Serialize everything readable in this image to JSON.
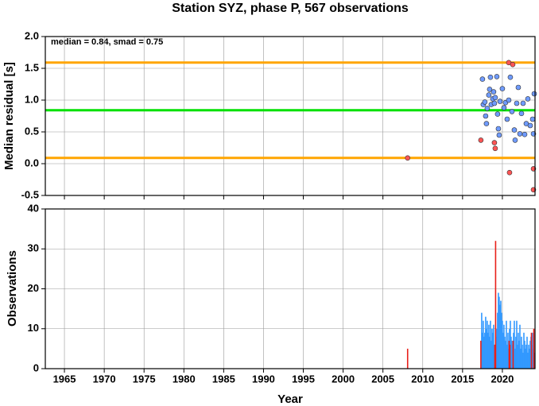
{
  "chart_data": [
    {
      "type": "scatter",
      "title": "Station SYZ, phase P, 567 observations",
      "annotation": "median = 0.84, smad = 0.75",
      "ylabel": "Median residual [s]",
      "xlim": [
        1962.6,
        2024.1
      ],
      "xticks": [
        1965,
        1970,
        1975,
        1980,
        1985,
        1990,
        1995,
        2000,
        2005,
        2010,
        2015,
        2020
      ],
      "xtick_labels": false,
      "ylim": [
        -0.5,
        2.0
      ],
      "yticks": [
        {
          "value": -0.5,
          "label": "-0.5"
        },
        {
          "value": 0,
          "label": "0.0"
        },
        {
          "value": 0.5,
          "label": "0.5"
        },
        {
          "value": 1,
          "label": "1.0"
        },
        {
          "value": 1.5,
          "label": "1.5"
        },
        {
          "value": 2,
          "label": "2.0"
        }
      ],
      "grid": true,
      "hlines": [
        {
          "value": 1.59,
          "color": "#ffa500"
        },
        {
          "value": 0.84,
          "color": "#00e000"
        },
        {
          "value": 0.09,
          "color": "#ffa500"
        }
      ],
      "series": [
        {
          "color": "#6f9bff",
          "x": [
            2017.5,
            2017.6,
            2017.8,
            2017.9,
            2018.0,
            2018.1,
            2018.3,
            2018.4,
            2018.5,
            2018.6,
            2018.8,
            2018.9,
            2019.0,
            2019.1,
            2019.3,
            2019.4,
            2019.5,
            2019.6,
            2019.7,
            2020.0,
            2020.2,
            2020.4,
            2020.6,
            2020.8,
            2021.0,
            2021.2,
            2021.5,
            2021.6,
            2021.8,
            2022.0,
            2022.2,
            2022.4,
            2022.6,
            2022.8,
            2023.0,
            2023.2,
            2023.5,
            2023.8,
            2023.9,
            2024.0
          ],
          "values": [
            1.33,
            0.93,
            0.97,
            0.75,
            0.63,
            0.87,
            1.08,
            1.17,
            1.36,
            0.93,
            1.02,
            1.13,
            0.95,
            1.04,
            1.37,
            0.78,
            0.55,
            0.45,
            0.98,
            1.18,
            0.88,
            0.96,
            0.7,
            1.0,
            1.36,
            0.82,
            0.53,
            0.37,
            0.95,
            1.2,
            0.47,
            0.79,
            0.95,
            0.46,
            0.63,
            1.02,
            0.6,
            0.7,
            0.47,
            1.1
          ]
        },
        {
          "color": "#ff5555",
          "x": [
            2008.1,
            2017.3,
            2019.0,
            2019.1,
            2020.8,
            2021.3,
            2020.9,
            2023.9,
            2023.9
          ],
          "values": [
            0.09,
            0.37,
            0.33,
            0.24,
            1.59,
            1.56,
            -0.14,
            -0.08,
            -0.41
          ]
        }
      ]
    },
    {
      "type": "bar",
      "ylabel": "Observations",
      "xlabel": "Year",
      "xlim": [
        1962.6,
        2024.1
      ],
      "xticks": [
        1965,
        1970,
        1975,
        1980,
        1985,
        1990,
        1995,
        2000,
        2005,
        2010,
        2015,
        2020
      ],
      "xtick_labels": true,
      "ylim": [
        0,
        40
      ],
      "yticks": [
        0,
        10,
        20,
        30,
        40
      ],
      "grid": true,
      "series": [
        {
          "color": "#3399ff",
          "x": [
            2017.4,
            2017.5,
            2017.6,
            2017.7,
            2017.8,
            2017.9,
            2018.0,
            2018.1,
            2018.2,
            2018.3,
            2018.4,
            2018.5,
            2018.6,
            2018.7,
            2018.8,
            2018.9,
            2019.0,
            2019.1,
            2019.2,
            2019.3,
            2019.4,
            2019.5,
            2019.6,
            2019.7,
            2019.8,
            2019.9,
            2020.0,
            2020.1,
            2020.2,
            2020.3,
            2020.4,
            2020.5,
            2020.6,
            2020.7,
            2020.8,
            2020.9,
            2021.0,
            2021.1,
            2021.2,
            2021.3,
            2021.4,
            2021.5,
            2021.6,
            2021.7,
            2021.8,
            2021.9,
            2022.0,
            2022.1,
            2022.2,
            2022.3,
            2022.4,
            2022.5,
            2022.6,
            2022.7,
            2022.8,
            2022.9,
            2023.0,
            2023.1,
            2023.2,
            2023.3,
            2023.4,
            2023.5,
            2023.6,
            2023.7,
            2023.8,
            2023.9,
            2024.0
          ],
          "values": [
            14,
            9,
            12,
            8,
            9,
            13,
            10,
            12,
            9,
            11,
            8,
            12,
            7,
            10,
            9,
            11,
            6,
            5,
            8,
            10,
            14,
            19,
            18,
            16,
            17,
            14,
            12,
            9,
            11,
            8,
            7,
            12,
            6,
            9,
            5,
            10,
            12,
            8,
            7,
            6,
            9,
            12,
            5,
            8,
            12,
            6,
            9,
            7,
            11,
            5,
            8,
            6,
            4,
            9,
            7,
            5,
            6,
            8,
            4,
            6,
            5,
            7,
            8,
            6,
            9,
            5,
            4
          ]
        },
        {
          "color": "#e8201a",
          "x": [
            2008.1,
            2017.3,
            2019.05,
            2019.15,
            2020.85,
            2020.95,
            2021.35,
            2023.65,
            2023.95
          ],
          "values": [
            5,
            7,
            6,
            32,
            7,
            6,
            7,
            9,
            10
          ]
        }
      ]
    }
  ]
}
